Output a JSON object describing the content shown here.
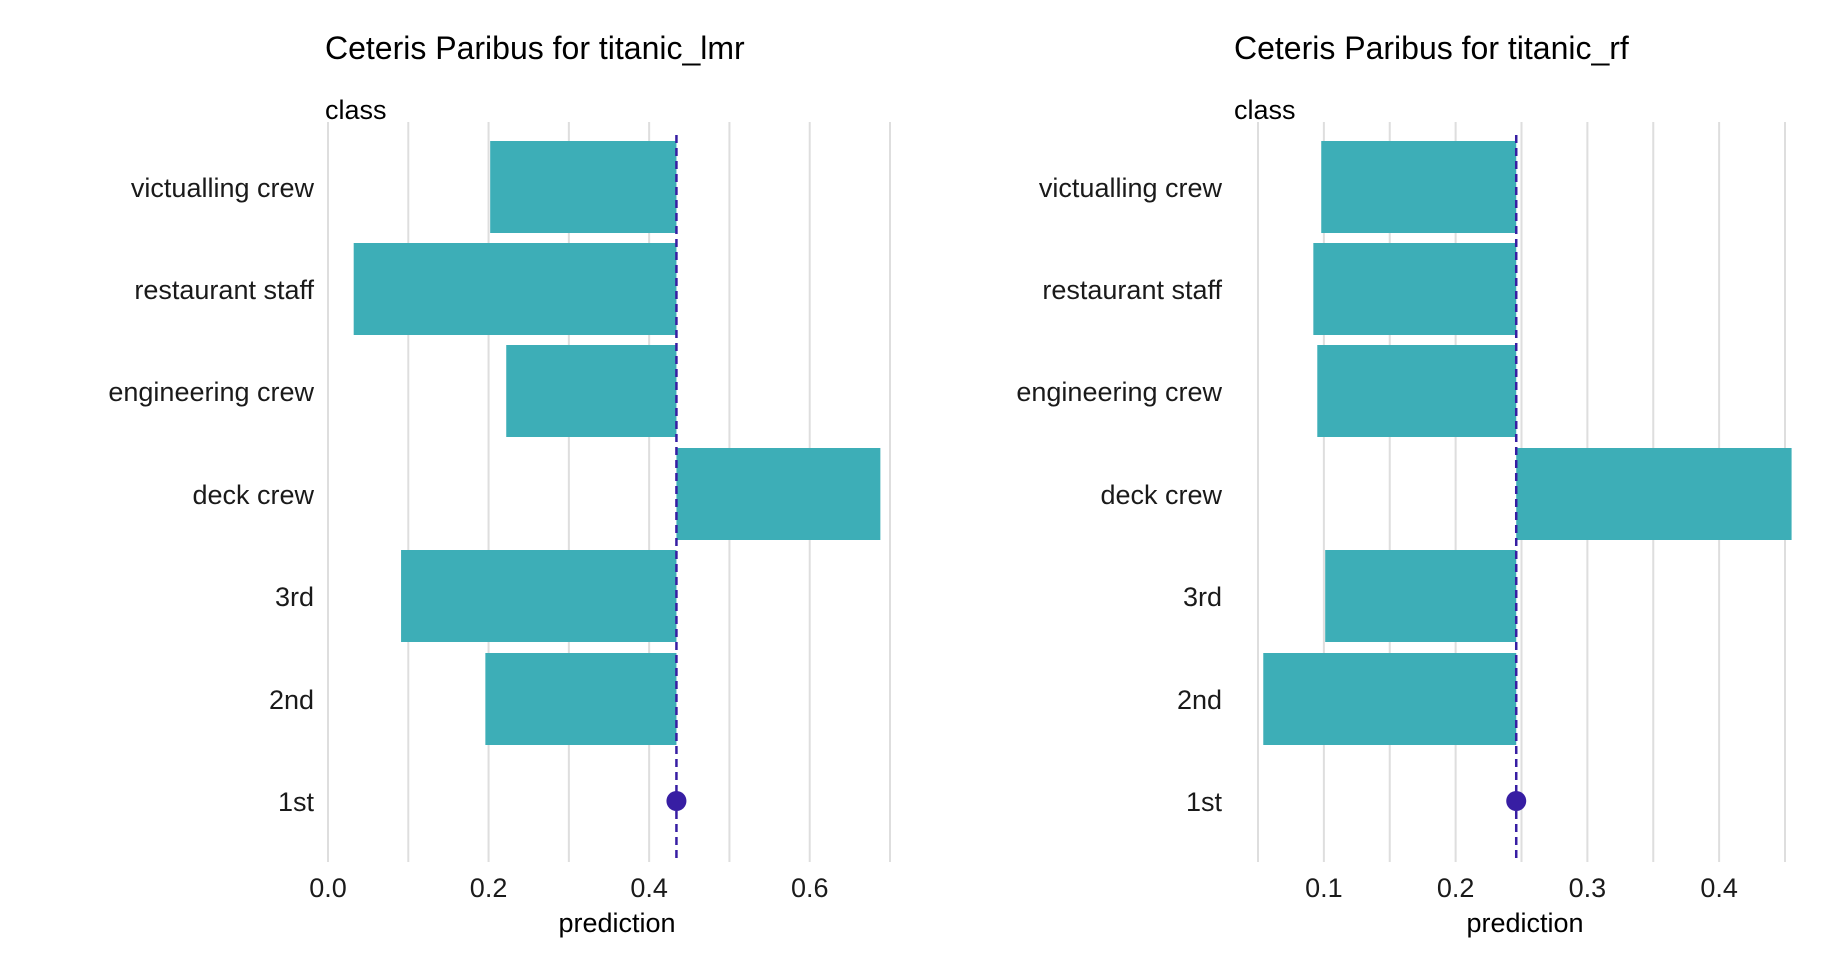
{
  "chart_data": [
    {
      "type": "bar",
      "title": "Ceteris Paribus for titanic_lmr",
      "variable": "class",
      "xlabel": "prediction",
      "categories": [
        "victualling crew",
        "restaurant staff",
        "engineering crew",
        "deck crew",
        "3rd",
        "2nd",
        "1st"
      ],
      "values": [
        0.202,
        0.032,
        0.222,
        0.688,
        0.091,
        0.196,
        0.434
      ],
      "observed": {
        "category": "1st",
        "value": 0.434
      },
      "xlim": [
        0.0,
        0.7
      ],
      "xticks": [
        0.0,
        0.2,
        0.4,
        0.6
      ],
      "xtick_labels": [
        "0.0",
        "0.2",
        "0.4",
        "0.6"
      ]
    },
    {
      "type": "bar",
      "title": "Ceteris Paribus for titanic_rf",
      "variable": "class",
      "xlabel": "prediction",
      "categories": [
        "victualling crew",
        "restaurant staff",
        "engineering crew",
        "deck crew",
        "3rd",
        "2nd",
        "1st"
      ],
      "values": [
        0.098,
        0.092,
        0.095,
        0.455,
        0.101,
        0.054,
        0.246
      ],
      "observed": {
        "category": "1st",
        "value": 0.246
      },
      "xlim": [
        0.05,
        0.45
      ],
      "xticks": [
        0.1,
        0.2,
        0.3,
        0.4
      ],
      "xtick_labels": [
        "0.1",
        "0.2",
        "0.3",
        "0.4"
      ]
    }
  ],
  "colors": {
    "bar": "#3daeb7",
    "reference_line": "#371ea3",
    "observation_point": "#371ea3",
    "grid": "#dedede"
  }
}
